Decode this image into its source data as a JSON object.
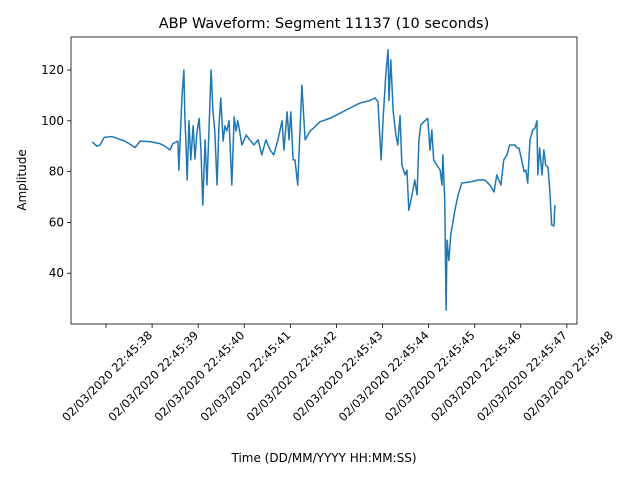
{
  "chart_data": {
    "type": "line",
    "title": "ABP Waveform: Segment 11137 (10 seconds)",
    "xlabel": "Time (DD/MM/YYYY HH:MM:SS)",
    "ylabel": "Amplitude",
    "color": "#1f77b4",
    "x": [
      37.7,
      37.8,
      37.87,
      37.96,
      38.13,
      38.41,
      38.59,
      38.63,
      38.74,
      38.95,
      39.17,
      39.28,
      39.39,
      39.45,
      39.56,
      39.58,
      39.65,
      39.69,
      39.71,
      39.74,
      39.76,
      39.8,
      39.84,
      39.89,
      39.93,
      39.97,
      40.02,
      40.06,
      40.1,
      40.15,
      40.19,
      40.23,
      40.28,
      40.32,
      40.36,
      40.41,
      40.45,
      40.49,
      40.54,
      40.58,
      40.62,
      40.67,
      40.73,
      40.78,
      40.82,
      40.86,
      40.95,
      41.04,
      41.12,
      41.21,
      41.3,
      41.38,
      41.47,
      41.56,
      41.64,
      41.73,
      41.82,
      41.86,
      41.93,
      41.97,
      42.01,
      42.06,
      42.1,
      42.16,
      42.25,
      42.32,
      42.43,
      42.53,
      42.64,
      42.86,
      43.08,
      43.29,
      43.51,
      43.62,
      43.73,
      43.84,
      43.9,
      43.97,
      44.01,
      44.07,
      44.12,
      44.14,
      44.18,
      44.23,
      44.29,
      44.33,
      44.38,
      44.42,
      44.49,
      44.53,
      44.57,
      44.64,
      44.7,
      44.75,
      44.79,
      44.83,
      44.92,
      44.98,
      45.03,
      45.07,
      45.11,
      45.18,
      45.25,
      45.29,
      45.31,
      45.35,
      45.38,
      45.4,
      45.44,
      45.48,
      45.57,
      45.64,
      45.72,
      45.9,
      46.07,
      46.22,
      46.33,
      46.42,
      46.48,
      46.57,
      46.63,
      46.7,
      46.76,
      46.87,
      46.92,
      46.96,
      47.02,
      47.07,
      47.11,
      47.15,
      47.2,
      47.26,
      47.31,
      47.35,
      47.37,
      47.41,
      47.46,
      47.5,
      47.54,
      47.59,
      47.63,
      47.67,
      47.72,
      47.74
    ],
    "values": [
      91.7,
      90,
      90.5,
      93.5,
      93.8,
      92,
      90,
      89.5,
      92,
      91.8,
      91,
      90,
      88.5,
      91,
      92,
      80.6,
      110,
      120,
      102,
      88.5,
      76.7,
      100,
      84.6,
      98,
      85,
      95,
      101,
      88.5,
      66.8,
      92.5,
      74.7,
      94.4,
      120,
      104,
      96,
      74.7,
      98,
      109,
      92,
      98,
      96,
      100,
      74.7,
      101.5,
      96,
      100,
      90.5,
      94.4,
      92.5,
      90.5,
      92.5,
      86.6,
      92.5,
      88.5,
      86.6,
      92.5,
      100,
      88.5,
      103.5,
      92.5,
      103.5,
      84.6,
      84.6,
      74.7,
      114,
      92.5,
      96,
      97.6,
      99.6,
      101,
      103,
      105,
      107,
      107.5,
      108,
      109,
      107.5,
      84.6,
      100,
      118,
      128,
      108,
      124,
      104,
      94.4,
      90.5,
      102,
      82.6,
      78.7,
      80.6,
      64.8,
      70.8,
      76.7,
      70.8,
      92.5,
      98.4,
      100,
      101,
      88.5,
      96.4,
      84.6,
      82.6,
      80.6,
      74.7,
      86.6,
      68.8,
      25.4,
      53,
      45,
      55,
      64.8,
      70.8,
      75.5,
      75.9,
      76.7,
      76.7,
      74.7,
      72,
      78.7,
      74.7,
      84.6,
      86.6,
      90.5,
      90.5,
      89.3,
      89.3,
      84.6,
      80,
      80.6,
      75.5,
      92.5,
      96.4,
      97.2,
      100,
      78.7,
      89.3,
      78.7,
      88.5,
      82.6,
      81.8,
      72.7,
      59,
      58.6,
      66.8
    ],
    "xlim": [
      37.24,
      48.22
    ],
    "ylim": [
      20,
      133
    ],
    "xticks": [
      {
        "value": 38,
        "label": "02/03/2020 22:45:38"
      },
      {
        "value": 39,
        "label": "02/03/2020 22:45:39"
      },
      {
        "value": 40,
        "label": "02/03/2020 22:45:40"
      },
      {
        "value": 41,
        "label": "02/03/2020 22:45:41"
      },
      {
        "value": 42,
        "label": "02/03/2020 22:45:42"
      },
      {
        "value": 43,
        "label": "02/03/2020 22:45:43"
      },
      {
        "value": 44,
        "label": "02/03/2020 22:45:44"
      },
      {
        "value": 45,
        "label": "02/03/2020 22:45:45"
      },
      {
        "value": 46,
        "label": "02/03/2020 22:45:46"
      },
      {
        "value": 47,
        "label": "02/03/2020 22:45:47"
      },
      {
        "value": 48,
        "label": "02/03/2020 22:45:48"
      }
    ],
    "yticks": [
      40,
      60,
      80,
      100,
      120
    ]
  }
}
